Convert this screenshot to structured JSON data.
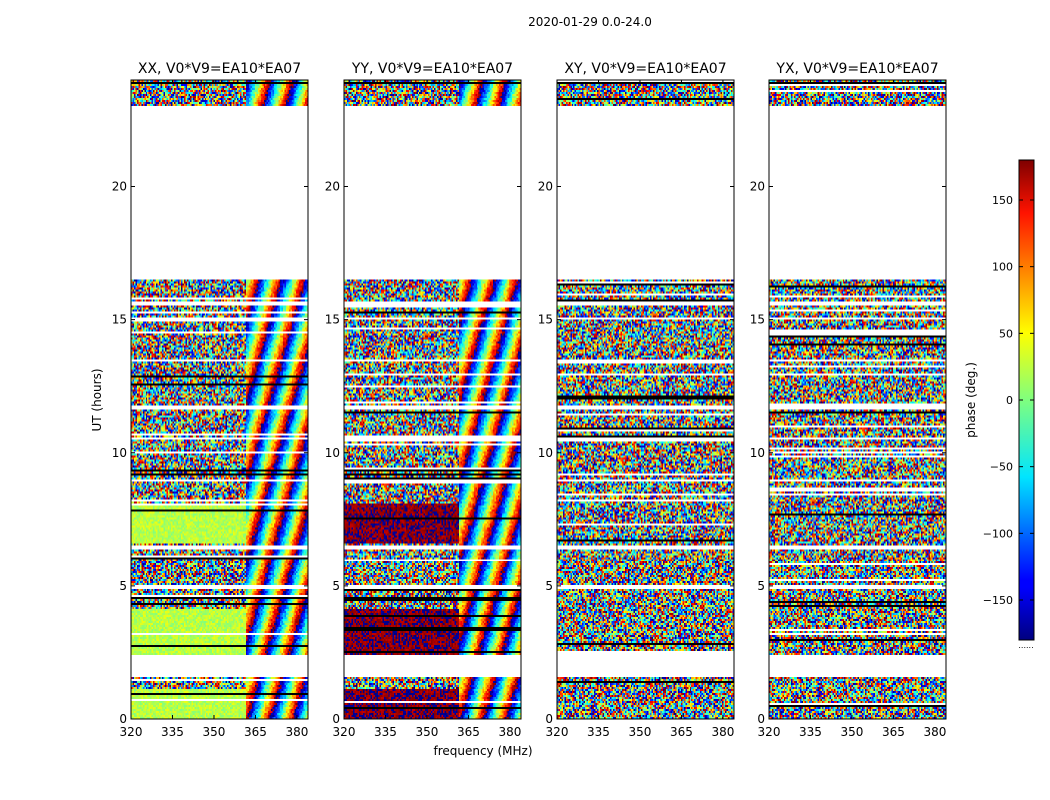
{
  "chart_data": {
    "type": "heatmap",
    "suptitle": "2020-01-29 0.0-24.0",
    "ylabel": "UT (hours)",
    "xlabel": "frequency (MHz)",
    "xlim": [
      320,
      384
    ],
    "ylim": [
      0,
      24
    ],
    "xticks": [
      320,
      335,
      350,
      365,
      380
    ],
    "xtick_labels": [
      "320",
      "335",
      "350",
      "365",
      "380"
    ],
    "yticks": [
      0,
      5,
      10,
      15,
      20
    ],
    "ytick_labels": [
      "0",
      "5",
      "10",
      "15",
      "20"
    ],
    "colorbar": {
      "label": "phase (deg.)",
      "range": [
        -180,
        180
      ],
      "ticks": [
        150,
        100,
        50,
        0,
        -50,
        -100,
        -150
      ],
      "tick_labels": [
        "150",
        "100",
        "50",
        "0",
        "−50",
        "−100",
        "−150"
      ],
      "colormap": "jet",
      "footer": "......"
    },
    "panels": [
      {
        "title": "XX, V0*V9=EA10*EA07",
        "smooth_phase_deg": 20,
        "color_mode": "phase-flat"
      },
      {
        "title": "YY, V0*V9=EA10*EA07",
        "smooth_phase_deg": 175,
        "color_mode": "phase-wrap"
      },
      {
        "title": "XY, V0*V9=EA10*EA07",
        "smooth_phase_deg": 0,
        "color_mode": "noise"
      },
      {
        "title": "YX, V0*V9=EA10*EA07",
        "smooth_phase_deg": 0,
        "color_mode": "noise"
      }
    ],
    "data_segments_ut_hours": [
      [
        0.0,
        1.6
      ],
      [
        2.4,
        4.9
      ],
      [
        5.0,
        6.35
      ],
      [
        6.55,
        8.9
      ],
      [
        9.0,
        10.5
      ],
      [
        10.6,
        11.6
      ],
      [
        11.75,
        13.4
      ],
      [
        13.5,
        15.0
      ],
      [
        15.1,
        15.55
      ],
      [
        15.7,
        16.5
      ],
      [
        23.0,
        24.0
      ]
    ],
    "fringe_start_mhz": 362
  }
}
